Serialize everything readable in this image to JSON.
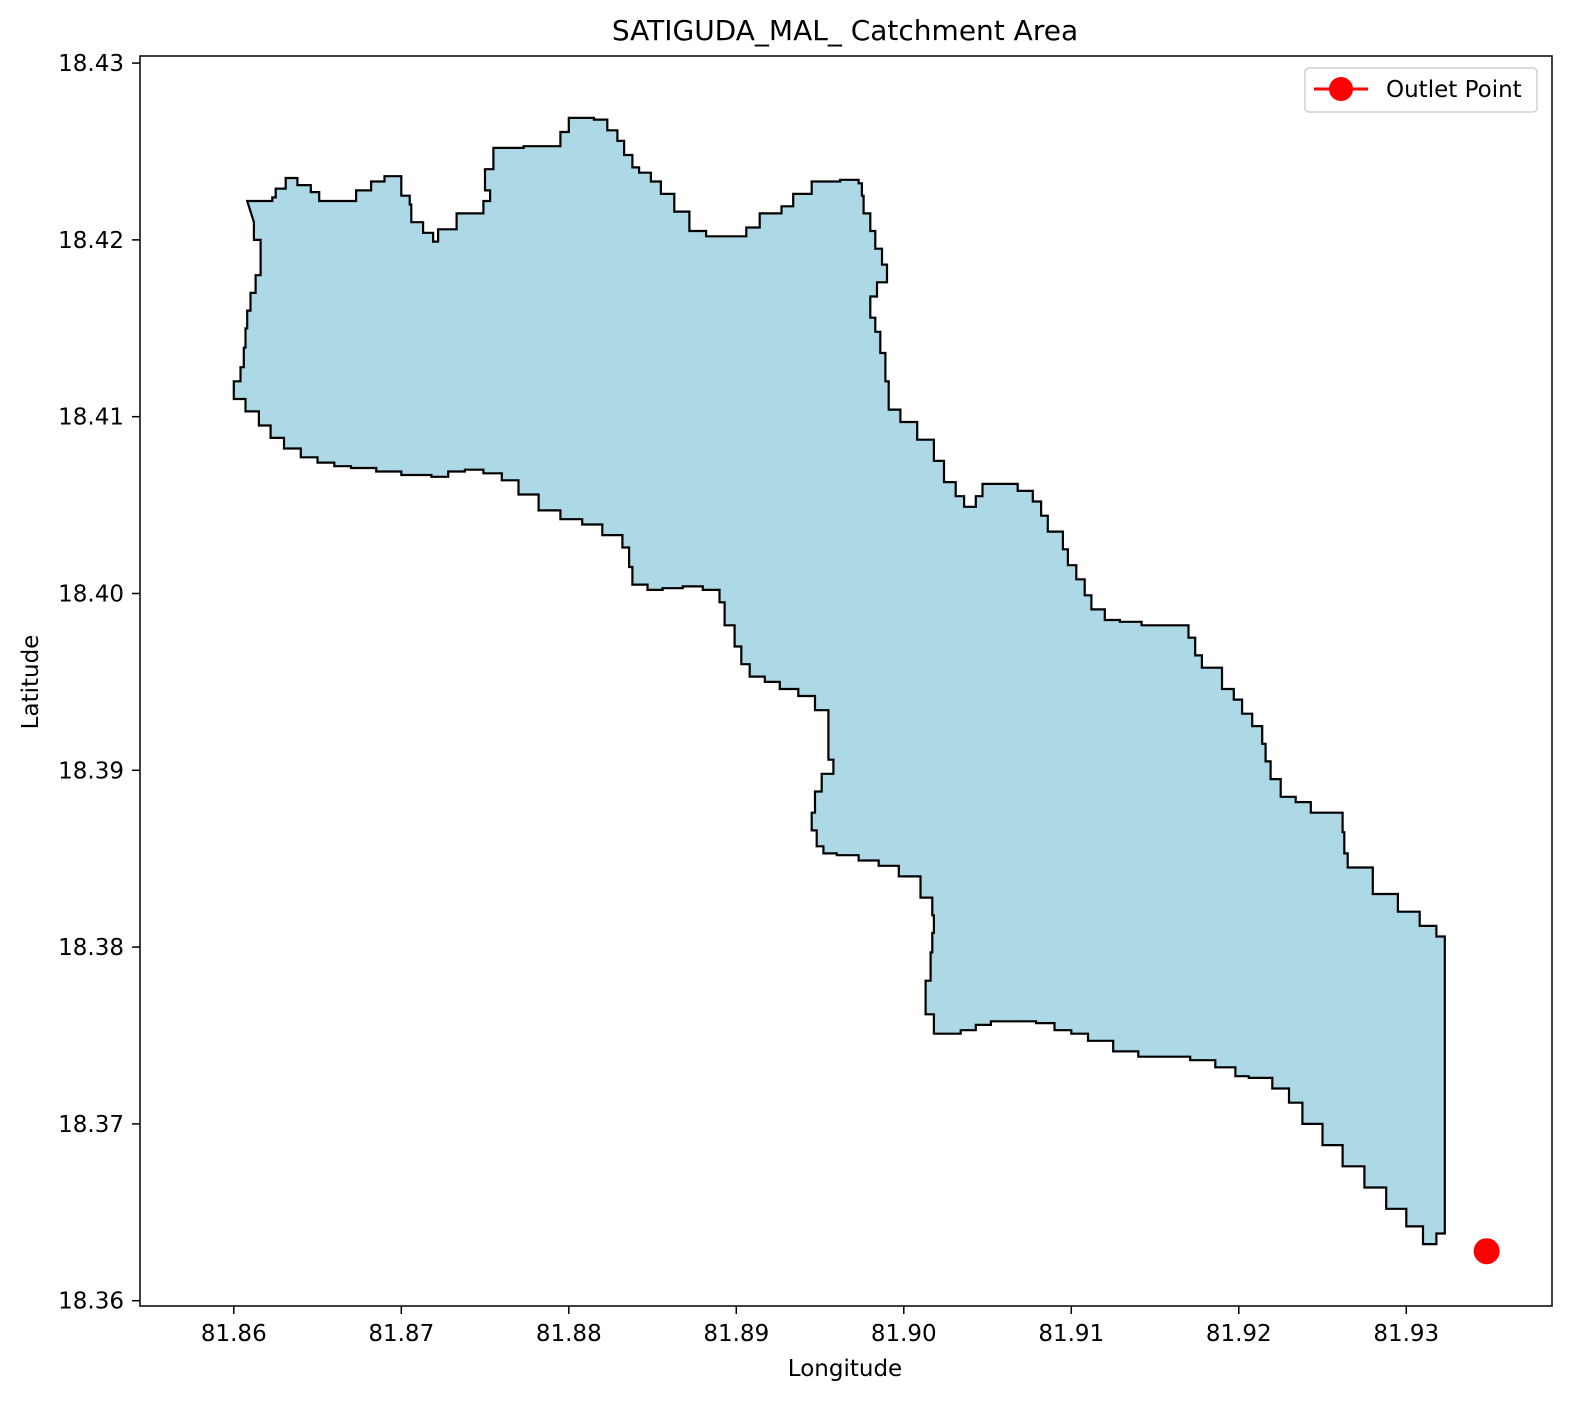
{
  "chart_data": {
    "type": "area",
    "title": "SATIGUDA_MAL_ Catchment Area",
    "xlabel": "Longitude",
    "ylabel": "Latitude",
    "xlim": [
      81.8544,
      81.9387
    ],
    "ylim": [
      18.3597,
      18.4304
    ],
    "xticks": [
      81.86,
      81.87,
      81.88,
      81.89,
      81.9,
      81.91,
      81.92,
      81.93
    ],
    "xtick_labels": [
      "81.86",
      "81.87",
      "81.88",
      "81.89",
      "81.90",
      "81.91",
      "81.92",
      "81.93"
    ],
    "yticks": [
      18.36,
      18.37,
      18.38,
      18.39,
      18.4,
      18.41,
      18.42,
      18.43
    ],
    "ytick_labels": [
      "18.36",
      "18.37",
      "18.38",
      "18.39",
      "18.40",
      "18.41",
      "18.42",
      "18.43"
    ],
    "grid": false,
    "legend": {
      "placement": "upper right",
      "entries": [
        "Outlet Point"
      ]
    },
    "fill_color": "#add8e6",
    "edge_color": "#000000",
    "outlet_color": "#ff0000",
    "series": [
      {
        "type": "polygon",
        "points": [
          [
            81.8608,
            18.4222
          ],
          [
            81.8623,
            18.4224
          ],
          [
            81.8625,
            18.4229
          ],
          [
            81.8631,
            18.4235
          ],
          [
            81.8638,
            18.4231
          ],
          [
            81.8646,
            18.4227
          ],
          [
            81.8651,
            18.4222
          ],
          [
            81.866,
            18.4222
          ],
          [
            81.8673,
            18.4228
          ],
          [
            81.8682,
            18.4233
          ],
          [
            81.869,
            18.4236
          ],
          [
            81.8699,
            18.4236
          ],
          [
            81.87,
            18.4225
          ],
          [
            81.8705,
            18.422
          ],
          [
            81.8706,
            18.421
          ],
          [
            81.8713,
            18.4204
          ],
          [
            81.8719,
            18.4199
          ],
          [
            81.8722,
            18.4206
          ],
          [
            81.8733,
            18.4215
          ],
          [
            81.8749,
            18.4222
          ],
          [
            81.8753,
            18.4228
          ],
          [
            81.875,
            18.424
          ],
          [
            81.8755,
            18.4252
          ],
          [
            81.8773,
            18.4253
          ],
          [
            81.8788,
            18.4253
          ],
          [
            81.8795,
            18.4261
          ],
          [
            81.88,
            18.4269
          ],
          [
            81.8815,
            18.4268
          ],
          [
            81.8823,
            18.4262
          ],
          [
            81.8829,
            18.4256
          ],
          [
            81.8833,
            18.4248
          ],
          [
            81.8838,
            18.4241
          ],
          [
            81.8842,
            18.4238
          ],
          [
            81.8849,
            18.4233
          ],
          [
            81.8855,
            18.4226
          ],
          [
            81.8863,
            18.4216
          ],
          [
            81.8872,
            18.4205
          ],
          [
            81.8882,
            18.4202
          ],
          [
            81.8898,
            18.4202
          ],
          [
            81.8906,
            18.4207
          ],
          [
            81.8914,
            18.4215
          ],
          [
            81.8927,
            18.4219
          ],
          [
            81.8934,
            18.4226
          ],
          [
            81.8945,
            18.4233
          ],
          [
            81.8962,
            18.4234
          ],
          [
            81.8973,
            18.4232
          ],
          [
            81.8975,
            18.4225
          ],
          [
            81.8976,
            18.4215
          ],
          [
            81.898,
            18.4205
          ],
          [
            81.8983,
            18.4195
          ],
          [
            81.8987,
            18.4186
          ],
          [
            81.899,
            18.4176
          ],
          [
            81.8984,
            18.4168
          ],
          [
            81.898,
            18.4156
          ],
          [
            81.8983,
            18.4148
          ],
          [
            81.8986,
            18.4136
          ],
          [
            81.8989,
            18.412
          ],
          [
            81.8991,
            18.4104
          ],
          [
            81.8998,
            18.4097
          ],
          [
            81.9008,
            18.4087
          ],
          [
            81.9018,
            18.4075
          ],
          [
            81.9024,
            18.4063
          ],
          [
            81.9031,
            18.4055
          ],
          [
            81.9036,
            18.4049
          ],
          [
            81.9043,
            18.4055
          ],
          [
            81.9047,
            18.4062
          ],
          [
            81.9054,
            18.4062
          ],
          [
            81.9061,
            18.4062
          ],
          [
            81.9068,
            18.4058
          ],
          [
            81.9077,
            18.4052
          ],
          [
            81.9082,
            18.4044
          ],
          [
            81.9086,
            18.4035
          ],
          [
            81.9094,
            18.4035
          ],
          [
            81.9095,
            18.4025
          ],
          [
            81.9098,
            18.4016
          ],
          [
            81.9103,
            18.4008
          ],
          [
            81.9108,
            18.3999
          ],
          [
            81.9112,
            18.3991
          ],
          [
            81.912,
            18.3985
          ],
          [
            81.9129,
            18.3984
          ],
          [
            81.9142,
            18.3982
          ],
          [
            81.916,
            18.3982
          ],
          [
            81.917,
            18.3975
          ],
          [
            81.9174,
            18.3965
          ],
          [
            81.9178,
            18.3958
          ],
          [
            81.919,
            18.3946
          ],
          [
            81.9197,
            18.394
          ],
          [
            81.9202,
            18.3932
          ],
          [
            81.9208,
            18.3925
          ],
          [
            81.9214,
            18.3915
          ],
          [
            81.9216,
            18.3905
          ],
          [
            81.9219,
            18.3895
          ],
          [
            81.9225,
            18.3885
          ],
          [
            81.9234,
            18.3882
          ],
          [
            81.9243,
            18.3876
          ],
          [
            81.9252,
            18.3876
          ],
          [
            81.926,
            18.3876
          ],
          [
            81.9262,
            18.3865
          ],
          [
            81.9263,
            18.3853
          ],
          [
            81.9265,
            18.3845
          ],
          [
            81.928,
            18.383
          ],
          [
            81.9295,
            18.382
          ],
          [
            81.9308,
            18.3812
          ],
          [
            81.9318,
            18.3806
          ],
          [
            81.9323,
            18.3802
          ],
          [
            81.9323,
            18.378
          ],
          [
            81.9323,
            18.375
          ],
          [
            81.9323,
            18.372
          ],
          [
            81.9323,
            18.369
          ],
          [
            81.9323,
            18.366
          ],
          [
            81.9323,
            18.3638
          ],
          [
            81.9318,
            18.3632
          ],
          [
            81.931,
            18.3642
          ],
          [
            81.93,
            18.3652
          ],
          [
            81.9288,
            18.3664
          ],
          [
            81.9275,
            18.3676
          ],
          [
            81.9262,
            18.3688
          ],
          [
            81.925,
            18.37
          ],
          [
            81.9238,
            18.3712
          ],
          [
            81.923,
            18.372
          ],
          [
            81.922,
            18.3726
          ],
          [
            81.9206,
            18.3727
          ],
          [
            81.9198,
            18.3732
          ],
          [
            81.9186,
            18.3736
          ],
          [
            81.9171,
            18.3738
          ],
          [
            81.9155,
            18.3738
          ],
          [
            81.914,
            18.3741
          ],
          [
            81.9125,
            18.3747
          ],
          [
            81.911,
            18.3751
          ],
          [
            81.91,
            18.3753
          ],
          [
            81.909,
            18.3757
          ],
          [
            81.9079,
            18.3758
          ],
          [
            81.9065,
            18.3758
          ],
          [
            81.9052,
            18.3756
          ],
          [
            81.9043,
            18.3753
          ],
          [
            81.9034,
            18.3751
          ],
          [
            81.9025,
            18.3751
          ],
          [
            81.9018,
            18.3762
          ],
          [
            81.9013,
            18.3781
          ],
          [
            81.9016,
            18.3797
          ],
          [
            81.9017,
            18.3808
          ],
          [
            81.9018,
            18.3818
          ],
          [
            81.9017,
            18.3828
          ],
          [
            81.901,
            18.384
          ],
          [
            81.8997,
            18.3846
          ],
          [
            81.8985,
            18.3849
          ],
          [
            81.8973,
            18.3852
          ],
          [
            81.896,
            18.3853
          ],
          [
            81.8952,
            18.3857
          ],
          [
            81.8948,
            18.3866
          ],
          [
            81.8945,
            18.3876
          ],
          [
            81.8947,
            18.3888
          ],
          [
            81.8951,
            18.3898
          ],
          [
            81.8958,
            18.3906
          ],
          [
            81.8955,
            18.3918
          ],
          [
            81.8955,
            18.3934
          ],
          [
            81.8947,
            18.3942
          ],
          [
            81.8937,
            18.3946
          ],
          [
            81.8926,
            18.395
          ],
          [
            81.8917,
            18.3953
          ],
          [
            81.8908,
            18.396
          ],
          [
            81.8903,
            18.397
          ],
          [
            81.8899,
            18.3982
          ],
          [
            81.8893,
            18.3995
          ],
          [
            81.889,
            18.4002
          ],
          [
            81.888,
            18.4004
          ],
          [
            81.8868,
            18.4003
          ],
          [
            81.8856,
            18.4002
          ],
          [
            81.8847,
            18.4005
          ],
          [
            81.8838,
            18.4015
          ],
          [
            81.8836,
            18.4026
          ],
          [
            81.8832,
            18.4033
          ],
          [
            81.882,
            18.4039
          ],
          [
            81.8808,
            18.4042
          ],
          [
            81.8795,
            18.4047
          ],
          [
            81.8782,
            18.4056
          ],
          [
            81.877,
            18.4064
          ],
          [
            81.876,
            18.4068
          ],
          [
            81.8749,
            18.407
          ],
          [
            81.8738,
            18.4069
          ],
          [
            81.8728,
            18.4066
          ],
          [
            81.8718,
            18.4067
          ],
          [
            81.87,
            18.4069
          ],
          [
            81.8685,
            18.4071
          ],
          [
            81.867,
            18.4072
          ],
          [
            81.866,
            18.4074
          ],
          [
            81.865,
            18.4077
          ],
          [
            81.864,
            18.4082
          ],
          [
            81.863,
            18.4088
          ],
          [
            81.8622,
            18.4095
          ],
          [
            81.8615,
            18.4103
          ],
          [
            81.8607,
            18.411
          ],
          [
            81.86,
            18.4113
          ],
          [
            81.86,
            18.412
          ],
          [
            81.8604,
            18.4128
          ],
          [
            81.8606,
            18.4139
          ],
          [
            81.8607,
            18.415
          ],
          [
            81.8608,
            18.416
          ],
          [
            81.861,
            18.417
          ],
          [
            81.8613,
            18.418
          ],
          [
            81.8616,
            18.419
          ],
          [
            81.8616,
            18.42
          ],
          [
            81.8612,
            18.421
          ]
        ]
      },
      {
        "name": "Outlet Point",
        "type": "scatter",
        "points": [
          [
            81.9348,
            18.3628
          ]
        ]
      }
    ]
  }
}
